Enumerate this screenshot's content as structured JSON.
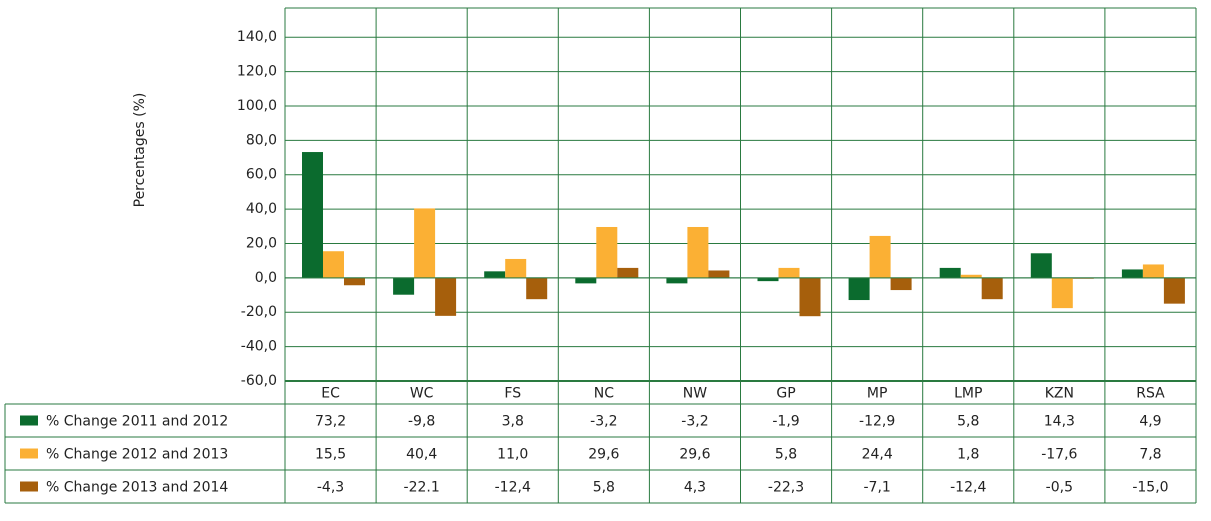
{
  "chart_data": {
    "type": "bar",
    "y_label": "Percentages (%)",
    "categories": [
      "EC",
      "WC",
      "FS",
      "NC",
      "NW",
      "GP",
      "MP",
      "LMP",
      "KZN",
      "RSA"
    ],
    "series": [
      {
        "name": "% Change 2011 and 2012",
        "color": "#0b6b2e",
        "values": [
          73.2,
          -9.8,
          3.8,
          -3.2,
          -3.2,
          -1.9,
          -12.9,
          5.8,
          14.3,
          4.9
        ],
        "value_labels": [
          "73,2",
          "-9,8",
          "3,8",
          "-3,2",
          "-3,2",
          "-1,9",
          "-12,9",
          "5,8",
          "14,3",
          "4,9"
        ]
      },
      {
        "name": "% Change 2012 and 2013",
        "color": "#fbb034",
        "values": [
          15.5,
          40.4,
          11.0,
          29.6,
          29.6,
          5.8,
          24.4,
          1.8,
          -17.6,
          7.8
        ],
        "value_labels": [
          "15,5",
          "40,4",
          "11,0",
          "29,6",
          "29,6",
          "5,8",
          "24,4",
          "1,8",
          "-17,6",
          "7,8"
        ]
      },
      {
        "name": "% Change 2013 and 2014",
        "color": "#a65f0c",
        "values": [
          -4.3,
          -22.1,
          -12.4,
          5.8,
          4.3,
          -22.3,
          -7.1,
          -12.4,
          -0.5,
          -15.0
        ],
        "value_labels": [
          "-4,3",
          "-22.1",
          "-12,4",
          "5,8",
          "4,3",
          "-22,3",
          "-7,1",
          "-12,4",
          "-0,5",
          "-15,0"
        ]
      }
    ],
    "ylim": [
      -60,
      157
    ],
    "yticks": [
      {
        "value": -60,
        "label": "-60,0"
      },
      {
        "value": -40,
        "label": "-40,0"
      },
      {
        "value": -20,
        "label": "-20,0"
      },
      {
        "value": 0,
        "label": "0,0"
      },
      {
        "value": 20,
        "label": "20,0"
      },
      {
        "value": 40,
        "label": "40,0"
      },
      {
        "value": 60,
        "label": "60,0"
      },
      {
        "value": 80,
        "label": "80,0"
      },
      {
        "value": 100,
        "label": "100,0"
      },
      {
        "value": 120,
        "label": "120,0"
      },
      {
        "value": 140,
        "label": "140,0"
      }
    ],
    "grid": true,
    "legend": "table"
  }
}
